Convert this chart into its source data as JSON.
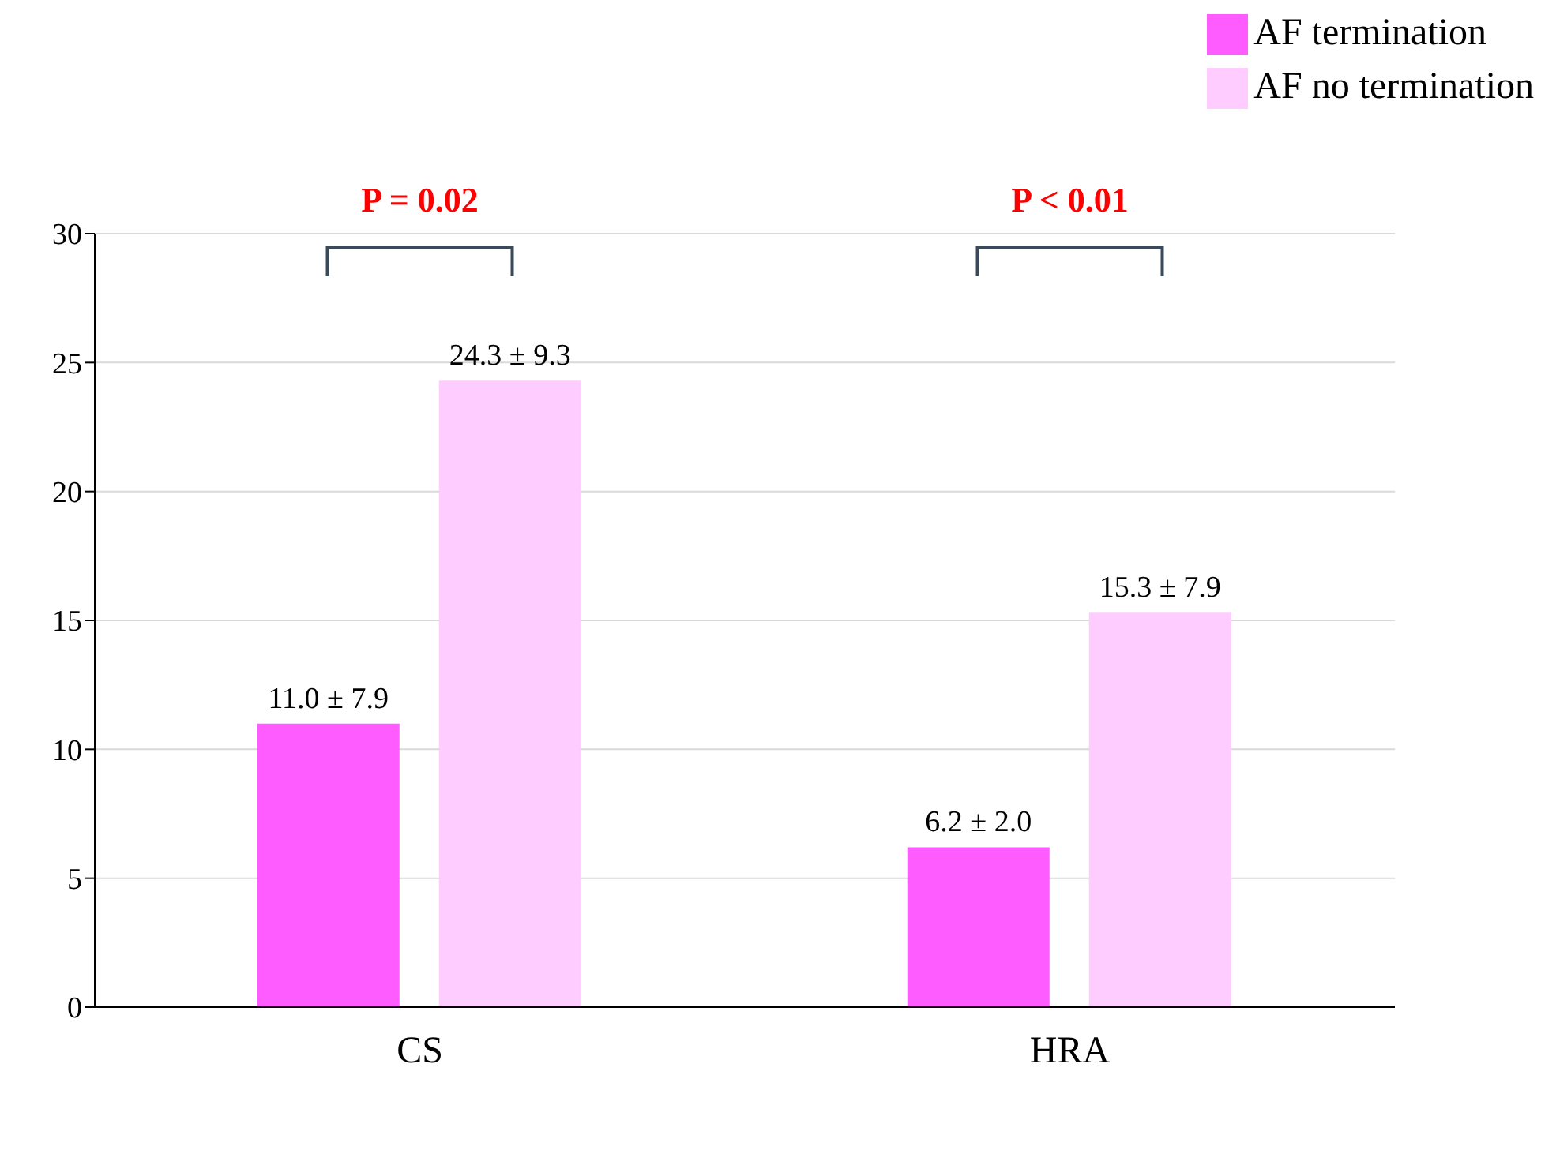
{
  "chart_data": {
    "type": "bar",
    "categories": [
      "CS",
      "HRA"
    ],
    "series": [
      {
        "name": "AF termination",
        "color": "#ff5cff",
        "values": [
          11.0,
          6.2
        ],
        "value_labels": [
          "11.0 ± 7.9",
          "6.2 ± 2.0"
        ]
      },
      {
        "name": "AF no termination",
        "color": "#ffccff",
        "values": [
          24.3,
          15.3
        ],
        "value_labels": [
          "24.3 ± 9.3",
          "15.3 ± 7.9"
        ]
      }
    ],
    "ylim": [
      0,
      30
    ],
    "yticks": [
      0,
      5,
      10,
      15,
      20,
      25,
      30
    ],
    "grid": "y",
    "legend": "top right",
    "annotations": [
      "P = 0.02",
      "P < 0.01"
    ]
  }
}
